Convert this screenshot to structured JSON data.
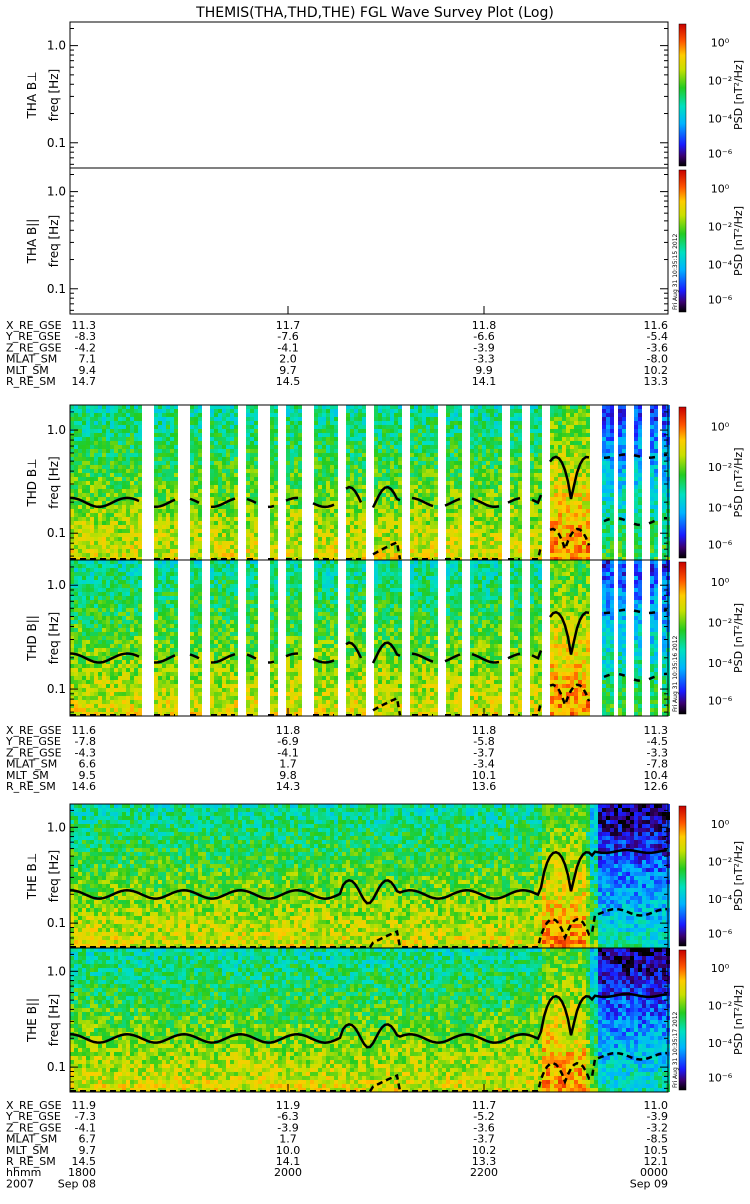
{
  "title": "THEMIS(THA,THD,THE) FGL Wave Survey Plot (Log)",
  "freq_label": "freq [Hz]",
  "colorbar": {
    "label": "PSD [nT²/Hz]",
    "ticks": [
      "10⁰",
      "10⁻²",
      "10⁻⁴",
      "10⁻⁶"
    ]
  },
  "stamps": [
    "Fri Aug 31 10:35:15 2012",
    "Fri Aug 31 10:35:16 2012",
    "Fri Aug 31 10:35:17 2012"
  ],
  "chart_data": [
    {
      "type": "heatmap",
      "panel": "THA B⊥",
      "ylabel": "THA B⊥",
      "yscale": "log",
      "yticks": [
        "1.0",
        "0.1"
      ],
      "data_present": false
    },
    {
      "type": "heatmap",
      "panel": "THA B||",
      "ylabel": "THA B||",
      "yscale": "log",
      "yticks": [
        "1.0",
        "0.1"
      ],
      "data_present": false
    },
    {
      "type": "heatmap",
      "panel": "THD B⊥",
      "ylabel": "THD B⊥",
      "yscale": "log",
      "yticks": [
        "1.0",
        "0.1"
      ],
      "data_present": true
    },
    {
      "type": "heatmap",
      "panel": "THD B||",
      "ylabel": "THD B||",
      "yscale": "log",
      "yticks": [
        "1.0",
        "0.1"
      ],
      "data_present": true
    },
    {
      "type": "heatmap",
      "panel": "THE B⊥",
      "ylabel": "THE B⊥",
      "yscale": "log",
      "yticks": [
        "1.0",
        "0.1"
      ],
      "data_present": true
    },
    {
      "type": "heatmap",
      "panel": "THE B||",
      "ylabel": "THE B||",
      "yscale": "log",
      "yticks": [
        "1.0",
        "0.1"
      ],
      "data_present": true
    }
  ],
  "ephemeris": [
    {
      "probe": "THA",
      "rows": [
        {
          "label": "X_RE_GSE",
          "values": [
            "11.3",
            "11.7",
            "11.8",
            "11.6"
          ]
        },
        {
          "label": "Y_RE_GSE",
          "values": [
            "-8.3",
            "-7.6",
            "-6.6",
            "-5.4"
          ]
        },
        {
          "label": "Z_RE_GSE",
          "values": [
            "-4.2",
            "-4.1",
            "-3.9",
            "-3.6"
          ]
        },
        {
          "label": "MLAT_SM",
          "values": [
            "7.1",
            "2.0",
            "-3.3",
            "-8.0"
          ]
        },
        {
          "label": "MLT_SM",
          "values": [
            "9.4",
            "9.7",
            "9.9",
            "10.2"
          ]
        },
        {
          "label": "R_RE_SM",
          "values": [
            "14.7",
            "14.5",
            "14.1",
            "13.3"
          ]
        }
      ]
    },
    {
      "probe": "THD",
      "rows": [
        {
          "label": "X_RE_GSE",
          "values": [
            "11.6",
            "11.8",
            "11.8",
            "11.3"
          ]
        },
        {
          "label": "Y_RE_GSE",
          "values": [
            "-7.8",
            "-6.9",
            "-5.8",
            "-4.5"
          ]
        },
        {
          "label": "Z_RE_GSE",
          "values": [
            "-4.3",
            "-4.1",
            "-3.7",
            "-3.3"
          ]
        },
        {
          "label": "MLAT_SM",
          "values": [
            "6.6",
            "1.7",
            "-3.4",
            "-7.8"
          ]
        },
        {
          "label": "MLT_SM",
          "values": [
            "9.5",
            "9.8",
            "10.1",
            "10.4"
          ]
        },
        {
          "label": "R_RE_SM",
          "values": [
            "14.6",
            "14.3",
            "13.6",
            "12.6"
          ]
        }
      ]
    },
    {
      "probe": "THE",
      "rows": [
        {
          "label": "X_RE_GSE",
          "values": [
            "11.9",
            "11.9",
            "11.7",
            "11.0"
          ]
        },
        {
          "label": "Y_RE_GSE",
          "values": [
            "-7.3",
            "-6.3",
            "-5.2",
            "-3.9"
          ]
        },
        {
          "label": "Z_RE_GSE",
          "values": [
            "-4.1",
            "-3.9",
            "-3.6",
            "-3.2"
          ]
        },
        {
          "label": "MLAT_SM",
          "values": [
            "6.7",
            "1.7",
            "-3.7",
            "-8.5"
          ]
        },
        {
          "label": "MLT_SM",
          "values": [
            "9.7",
            "10.0",
            "10.2",
            "10.5"
          ]
        },
        {
          "label": "R_RE_SM",
          "values": [
            "14.5",
            "14.1",
            "13.3",
            "12.1"
          ]
        },
        {
          "label": "hhmm",
          "values": [
            "1800",
            "2000",
            "2200",
            "0000"
          ]
        },
        {
          "label": "2007",
          "values": [
            "Sep 08",
            "",
            "",
            "Sep 09"
          ]
        }
      ]
    }
  ]
}
